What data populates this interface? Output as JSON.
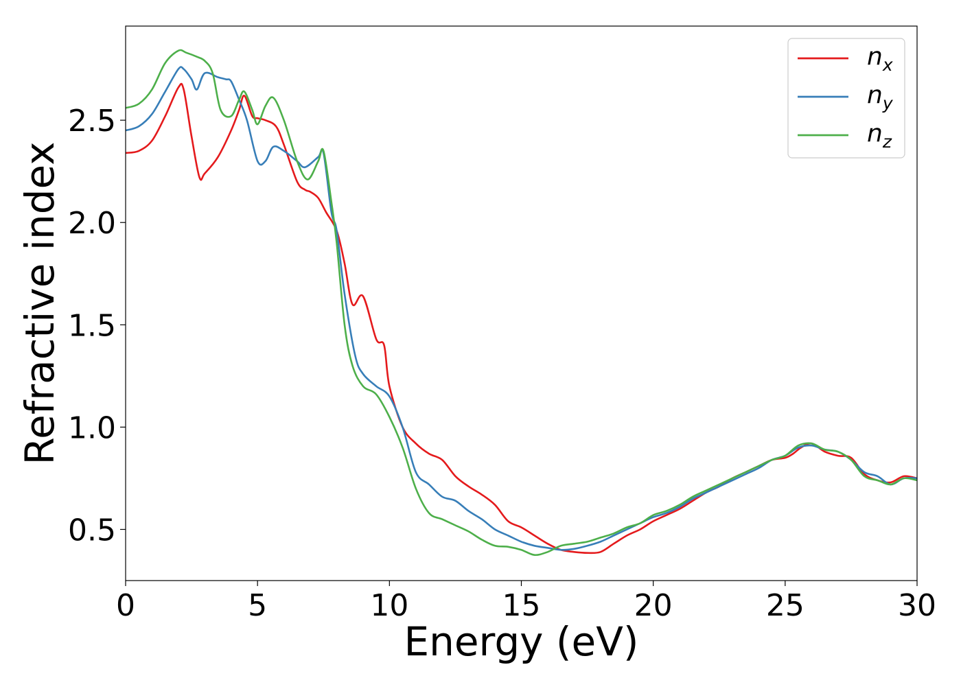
{
  "chart_data": {
    "type": "line",
    "xlabel": "Energy (eV)",
    "ylabel": "Refractive index",
    "xlim": [
      0,
      30
    ],
    "ylim": [
      0.25,
      2.96
    ],
    "xticks": [
      0,
      5,
      10,
      15,
      20,
      25,
      30
    ],
    "xtick_labels": [
      "0",
      "5",
      "10",
      "15",
      "20",
      "25",
      "30"
    ],
    "yticks": [
      0.5,
      1.0,
      1.5,
      2.0,
      2.5
    ],
    "ytick_labels": [
      "0.5",
      "1.0",
      "1.5",
      "2.0",
      "2.5"
    ],
    "grid": false,
    "legend_position": "top-right",
    "series": [
      {
        "name": "n_x",
        "label_base": "n",
        "label_sub": "x",
        "color": "#e41a1c",
        "points": [
          [
            0,
            2.34
          ],
          [
            0.5,
            2.35
          ],
          [
            1,
            2.4
          ],
          [
            1.5,
            2.52
          ],
          [
            2,
            2.66
          ],
          [
            2.2,
            2.65
          ],
          [
            2.5,
            2.42
          ],
          [
            2.8,
            2.22
          ],
          [
            3,
            2.24
          ],
          [
            3.5,
            2.32
          ],
          [
            4,
            2.45
          ],
          [
            4.3,
            2.55
          ],
          [
            4.5,
            2.62
          ],
          [
            4.8,
            2.52
          ],
          [
            5,
            2.51
          ],
          [
            5.3,
            2.5
          ],
          [
            5.7,
            2.47
          ],
          [
            6,
            2.38
          ],
          [
            6.5,
            2.2
          ],
          [
            6.8,
            2.16
          ],
          [
            7,
            2.15
          ],
          [
            7.3,
            2.12
          ],
          [
            7.6,
            2.05
          ],
          [
            8,
            1.96
          ],
          [
            8.3,
            1.8
          ],
          [
            8.6,
            1.6
          ],
          [
            9,
            1.64
          ],
          [
            9.5,
            1.43
          ],
          [
            9.8,
            1.4
          ],
          [
            10,
            1.2
          ],
          [
            10.5,
            1.0
          ],
          [
            11,
            0.92
          ],
          [
            11.5,
            0.87
          ],
          [
            12,
            0.84
          ],
          [
            12.5,
            0.76
          ],
          [
            13,
            0.71
          ],
          [
            13.5,
            0.67
          ],
          [
            14,
            0.62
          ],
          [
            14.5,
            0.54
          ],
          [
            15,
            0.51
          ],
          [
            15.5,
            0.47
          ],
          [
            16,
            0.43
          ],
          [
            16.5,
            0.4
          ],
          [
            17,
            0.39
          ],
          [
            17.5,
            0.385
          ],
          [
            18,
            0.39
          ],
          [
            18.5,
            0.43
          ],
          [
            19,
            0.47
          ],
          [
            19.5,
            0.5
          ],
          [
            20,
            0.54
          ],
          [
            20.5,
            0.57
          ],
          [
            21,
            0.6
          ],
          [
            21.5,
            0.64
          ],
          [
            22,
            0.68
          ],
          [
            22.5,
            0.71
          ],
          [
            23,
            0.75
          ],
          [
            23.5,
            0.78
          ],
          [
            24,
            0.81
          ],
          [
            24.5,
            0.84
          ],
          [
            25,
            0.85
          ],
          [
            25.3,
            0.87
          ],
          [
            25.6,
            0.9
          ],
          [
            26,
            0.92
          ],
          [
            26.5,
            0.88
          ],
          [
            27,
            0.86
          ],
          [
            27.5,
            0.85
          ],
          [
            28,
            0.77
          ],
          [
            28.5,
            0.74
          ],
          [
            29,
            0.73
          ],
          [
            29.5,
            0.76
          ],
          [
            30,
            0.75
          ]
        ]
      },
      {
        "name": "n_y",
        "label_base": "n",
        "label_sub": "y",
        "color": "#377eb8",
        "points": [
          [
            0,
            2.45
          ],
          [
            0.5,
            2.47
          ],
          [
            1,
            2.53
          ],
          [
            1.5,
            2.64
          ],
          [
            2,
            2.75
          ],
          [
            2.2,
            2.75
          ],
          [
            2.5,
            2.7
          ],
          [
            2.7,
            2.65
          ],
          [
            3,
            2.73
          ],
          [
            3.5,
            2.71
          ],
          [
            3.8,
            2.7
          ],
          [
            4,
            2.69
          ],
          [
            4.3,
            2.6
          ],
          [
            4.6,
            2.5
          ],
          [
            5,
            2.3
          ],
          [
            5.3,
            2.3
          ],
          [
            5.6,
            2.37
          ],
          [
            6,
            2.35
          ],
          [
            6.5,
            2.3
          ],
          [
            6.8,
            2.27
          ],
          [
            7.3,
            2.32
          ],
          [
            7.5,
            2.34
          ],
          [
            7.8,
            2.05
          ],
          [
            8,
            1.96
          ],
          [
            8.3,
            1.65
          ],
          [
            8.7,
            1.35
          ],
          [
            9,
            1.26
          ],
          [
            9.5,
            1.2
          ],
          [
            10,
            1.15
          ],
          [
            10.5,
            1.0
          ],
          [
            11,
            0.78
          ],
          [
            11.5,
            0.72
          ],
          [
            12,
            0.66
          ],
          [
            12.5,
            0.64
          ],
          [
            13,
            0.59
          ],
          [
            13.5,
            0.55
          ],
          [
            14,
            0.5
          ],
          [
            14.5,
            0.47
          ],
          [
            15,
            0.44
          ],
          [
            15.5,
            0.42
          ],
          [
            16,
            0.41
          ],
          [
            16.5,
            0.4
          ],
          [
            17,
            0.405
          ],
          [
            17.5,
            0.42
          ],
          [
            18,
            0.44
          ],
          [
            18.5,
            0.47
          ],
          [
            19,
            0.5
          ],
          [
            19.5,
            0.53
          ],
          [
            20,
            0.56
          ],
          [
            20.5,
            0.58
          ],
          [
            21,
            0.61
          ],
          [
            21.5,
            0.65
          ],
          [
            22,
            0.68
          ],
          [
            22.5,
            0.71
          ],
          [
            23,
            0.74
          ],
          [
            23.5,
            0.77
          ],
          [
            24,
            0.8
          ],
          [
            24.5,
            0.84
          ],
          [
            25,
            0.86
          ],
          [
            25.5,
            0.9
          ],
          [
            26,
            0.91
          ],
          [
            26.5,
            0.89
          ],
          [
            27,
            0.88
          ],
          [
            27.5,
            0.84
          ],
          [
            28,
            0.78
          ],
          [
            28.5,
            0.76
          ],
          [
            29,
            0.72
          ],
          [
            29.5,
            0.75
          ],
          [
            30,
            0.75
          ]
        ]
      },
      {
        "name": "n_z",
        "label_base": "n",
        "label_sub": "z",
        "color": "#4daf4a",
        "points": [
          [
            0,
            2.56
          ],
          [
            0.5,
            2.58
          ],
          [
            1,
            2.65
          ],
          [
            1.5,
            2.78
          ],
          [
            2,
            2.84
          ],
          [
            2.3,
            2.83
          ],
          [
            2.7,
            2.81
          ],
          [
            3,
            2.79
          ],
          [
            3.3,
            2.73
          ],
          [
            3.6,
            2.55
          ],
          [
            4,
            2.52
          ],
          [
            4.3,
            2.6
          ],
          [
            4.5,
            2.64
          ],
          [
            4.8,
            2.55
          ],
          [
            5,
            2.48
          ],
          [
            5.3,
            2.57
          ],
          [
            5.6,
            2.61
          ],
          [
            6,
            2.5
          ],
          [
            6.5,
            2.3
          ],
          [
            6.9,
            2.21
          ],
          [
            7.3,
            2.3
          ],
          [
            7.5,
            2.35
          ],
          [
            7.8,
            2.1
          ],
          [
            8,
            1.9
          ],
          [
            8.3,
            1.5
          ],
          [
            8.6,
            1.3
          ],
          [
            9,
            1.2
          ],
          [
            9.5,
            1.16
          ],
          [
            10,
            1.05
          ],
          [
            10.5,
            0.9
          ],
          [
            11,
            0.7
          ],
          [
            11.5,
            0.58
          ],
          [
            12,
            0.55
          ],
          [
            12.5,
            0.52
          ],
          [
            13,
            0.49
          ],
          [
            13.5,
            0.45
          ],
          [
            14,
            0.42
          ],
          [
            14.5,
            0.415
          ],
          [
            15,
            0.4
          ],
          [
            15.5,
            0.375
          ],
          [
            16,
            0.39
          ],
          [
            16.5,
            0.42
          ],
          [
            17,
            0.43
          ],
          [
            17.5,
            0.44
          ],
          [
            18,
            0.46
          ],
          [
            18.5,
            0.48
          ],
          [
            19,
            0.51
          ],
          [
            19.5,
            0.53
          ],
          [
            20,
            0.57
          ],
          [
            20.5,
            0.59
          ],
          [
            21,
            0.62
          ],
          [
            21.5,
            0.66
          ],
          [
            22,
            0.69
          ],
          [
            22.5,
            0.72
          ],
          [
            23,
            0.75
          ],
          [
            23.5,
            0.78
          ],
          [
            24,
            0.81
          ],
          [
            24.5,
            0.84
          ],
          [
            25,
            0.86
          ],
          [
            25.5,
            0.91
          ],
          [
            26,
            0.92
          ],
          [
            26.5,
            0.89
          ],
          [
            27,
            0.88
          ],
          [
            27.5,
            0.84
          ],
          [
            28,
            0.76
          ],
          [
            28.5,
            0.74
          ],
          [
            29,
            0.72
          ],
          [
            29.5,
            0.75
          ],
          [
            30,
            0.74
          ]
        ]
      }
    ]
  }
}
